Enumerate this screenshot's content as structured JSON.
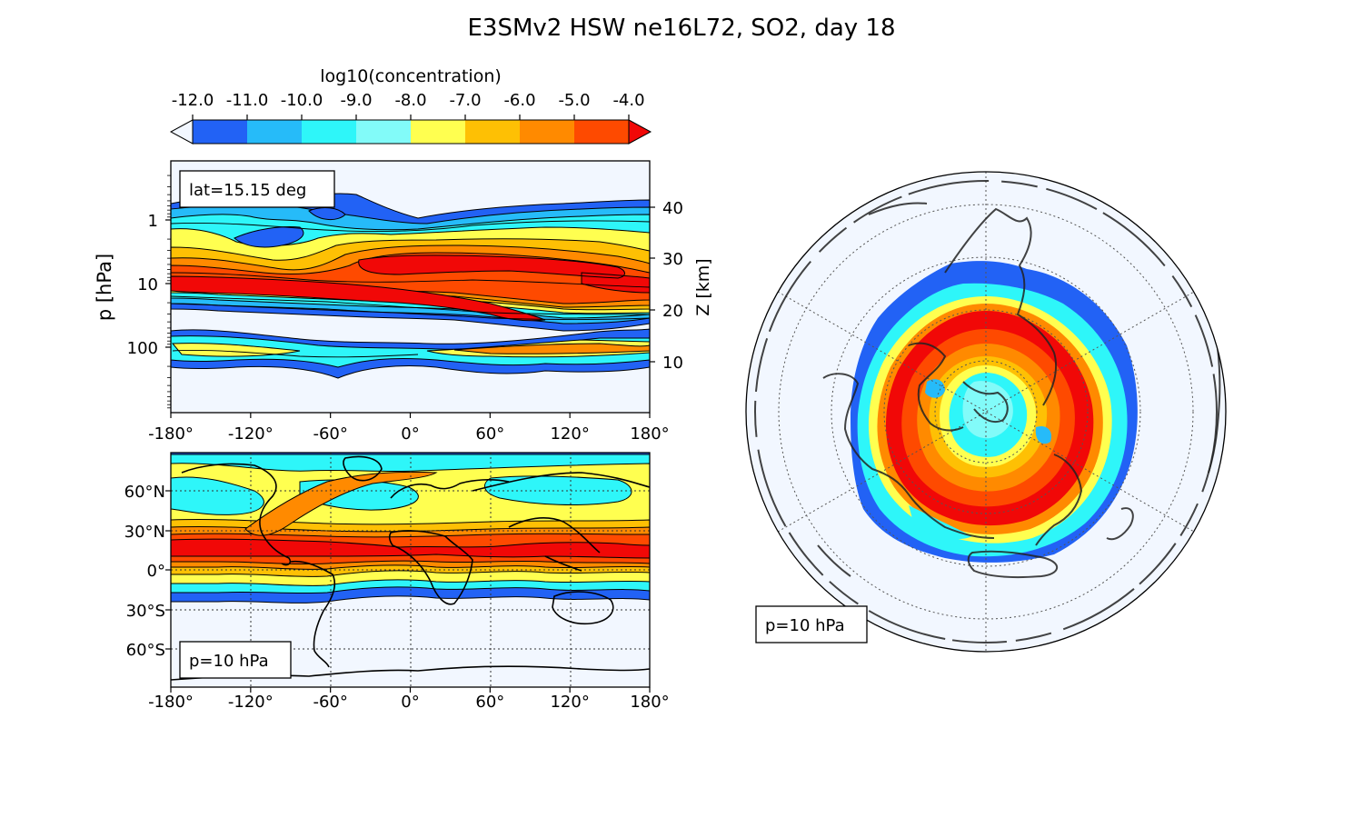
{
  "figure": {
    "title": "E3SMv2 HSW ne16L72, SO2, day 18"
  },
  "colorbar": {
    "label": "log10(concentration)",
    "ticks": [
      "-12.0",
      "-11.0",
      "-10.0",
      "-9.0",
      "-8.0",
      "-7.0",
      "-6.0",
      "-5.0",
      "-4.0"
    ],
    "levels": [
      -12,
      -11.5,
      -11,
      -10.5,
      -10,
      -9.5,
      -9,
      -8.5,
      -8,
      -7.5,
      -7,
      -6.5,
      -6,
      -5.5,
      -5,
      -4.5,
      -4
    ],
    "colors": [
      "#f2f7ff",
      "#2262f5",
      "#26bbf9",
      "#2ef6f9",
      "#82fbf9",
      "#ffff50",
      "#fec004",
      "#ff8a00",
      "#fe4a00",
      "#f10807"
    ],
    "extend": "both"
  },
  "panels": {
    "cross_section": {
      "annotation": "lat=15.15 deg",
      "ylabel": "p  [hPa]",
      "y2label": "Z [km]",
      "yticks": [
        "1",
        "10",
        "100"
      ],
      "y2ticks": [
        "40",
        "30",
        "20",
        "10"
      ],
      "xticks": [
        "-180°",
        "-120°",
        "-60°",
        "0°",
        "60°",
        "120°",
        "180°"
      ]
    },
    "map": {
      "annotation": "p=10 hPa",
      "yticks": [
        "60°N",
        "30°N",
        "0°",
        "30°S",
        "60°S"
      ],
      "xticks": [
        "-180°",
        "-120°",
        "-60°",
        "0°",
        "60°",
        "120°",
        "180°"
      ]
    },
    "polar": {
      "annotation": "p=10 hPa"
    }
  },
  "chart_data": [
    {
      "type": "heatmap",
      "title": "",
      "xlabel": "",
      "ylabel": "p  [hPa]",
      "y2label": "Z [km]",
      "xlim": [
        -180,
        180
      ],
      "ylim_hpa": [
        700,
        0.12
      ],
      "yscale": "log",
      "y2lim_km": [
        0,
        48
      ],
      "xticks": [
        -180,
        -120,
        -60,
        0,
        60,
        120,
        180
      ],
      "yticks": [
        1,
        10,
        100
      ],
      "y2ticks": [
        10,
        20,
        30,
        40
      ],
      "description": "zonal-vertical cross section of log10 SO2 concentration at lat=15.15 deg",
      "plume_levels_hpa": {
        "top_min": 0.6,
        "core": 10,
        "lower_layer": 100
      }
    },
    {
      "type": "heatmap",
      "title": "",
      "xlim": [
        -180,
        180
      ],
      "ylim": [
        -90,
        90
      ],
      "xticks": [
        -180,
        -120,
        -60,
        0,
        60,
        120,
        180
      ],
      "yticks": [
        60,
        30,
        0,
        -30,
        -60
      ],
      "grid": true,
      "description": "lat-lon map of log10 SO2 concentration at p=10 hPa",
      "plume_band_lat": [
        -22,
        80
      ],
      "core_lat": 15
    },
    {
      "type": "heatmap",
      "title": "",
      "projection": "orthographic, north pole",
      "grid": true,
      "description": "polar view of log10 SO2 concentration at p=10 hPa"
    }
  ]
}
